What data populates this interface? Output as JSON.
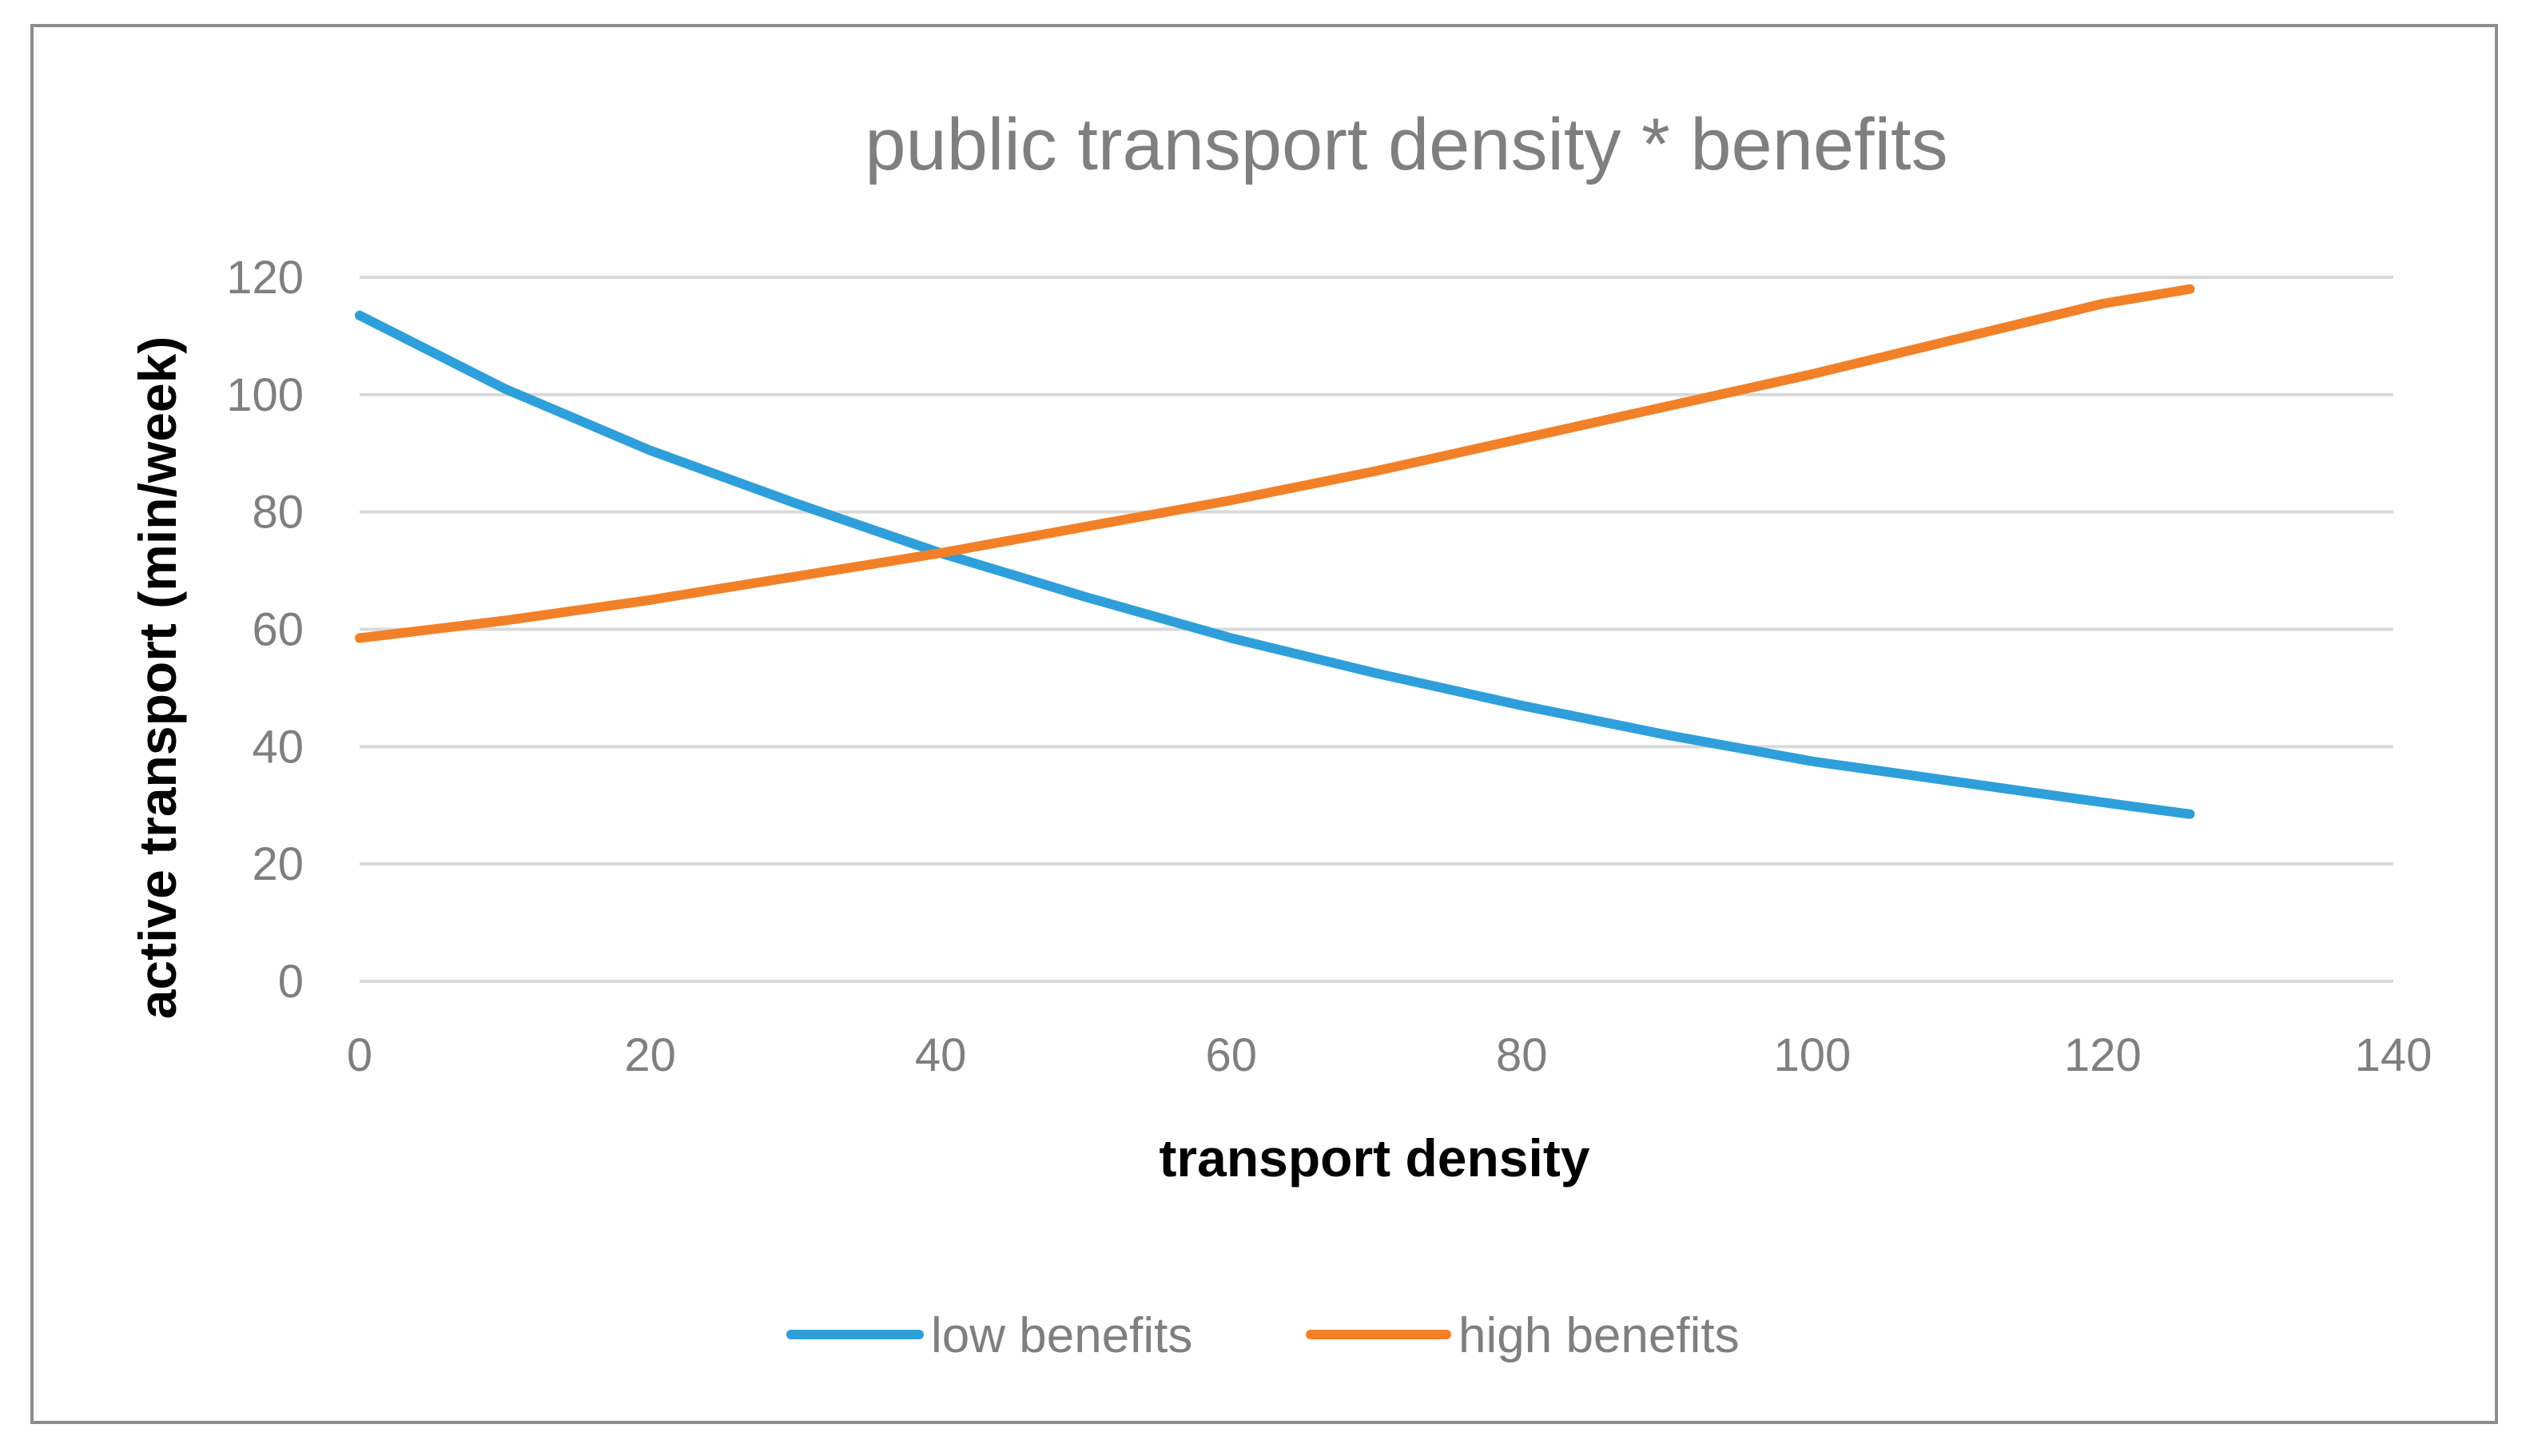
{
  "chart_data": {
    "type": "line",
    "title": "public transport density * benefits",
    "xlabel": "transport density",
    "ylabel": "active transport (min/week)",
    "xlim": [
      0,
      140
    ],
    "ylim": [
      0,
      120
    ],
    "xticks": [
      0,
      20,
      40,
      60,
      80,
      100,
      120,
      140
    ],
    "yticks": [
      0,
      20,
      40,
      60,
      80,
      100,
      120
    ],
    "grid": true,
    "legend_position": "bottom",
    "series": [
      {
        "name": "low benefits",
        "color": "#2e9fdb",
        "x": [
          0,
          10,
          20,
          30,
          40,
          50,
          60,
          70,
          80,
          90,
          100,
          110,
          120,
          126
        ],
        "y": [
          113.5,
          101,
          90.5,
          81.5,
          73,
          65.5,
          58.5,
          52.5,
          47,
          42,
          37.5,
          34,
          30.5,
          28.5
        ]
      },
      {
        "name": "high benefits",
        "color": "#f28028",
        "x": [
          0,
          10,
          20,
          30,
          40,
          50,
          60,
          70,
          80,
          90,
          100,
          110,
          120,
          126
        ],
        "y": [
          58.5,
          61.5,
          65,
          69,
          73,
          77.5,
          82,
          87,
          92.5,
          98,
          103.5,
          109.5,
          115.5,
          118
        ]
      }
    ]
  }
}
